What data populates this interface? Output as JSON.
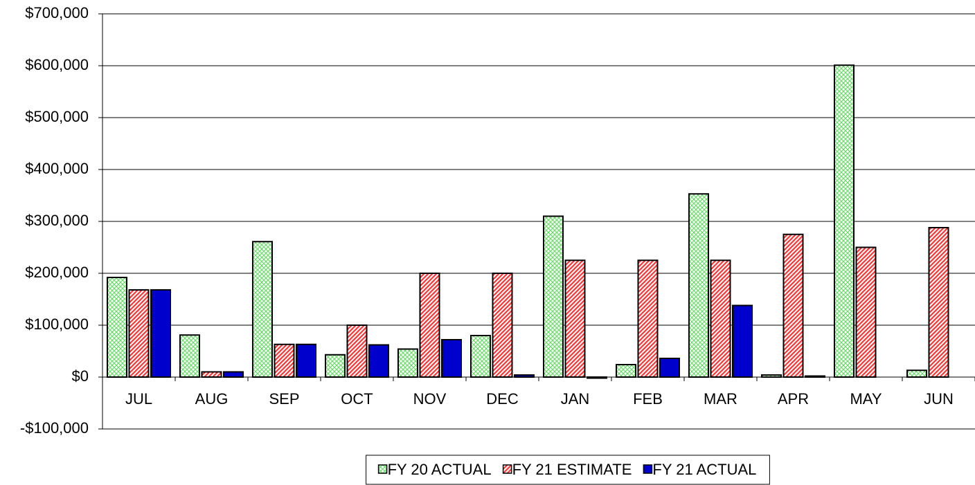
{
  "chart_data": {
    "type": "bar",
    "categories": [
      "JUL",
      "AUG",
      "SEP",
      "OCT",
      "NOV",
      "DEC",
      "JAN",
      "FEB",
      "MAR",
      "APR",
      "MAY",
      "JUN"
    ],
    "series": [
      {
        "name": "FY 20 ACTUAL",
        "color": "#33cc33",
        "pattern": "crosshatch",
        "values": [
          192000,
          81000,
          261000,
          43000,
          54000,
          80000,
          310000,
          24000,
          353000,
          4000,
          601000,
          13000
        ]
      },
      {
        "name": "FY 21 ESTIMATE",
        "color": "#ff3333",
        "pattern": "diagonal",
        "values": [
          168000,
          10000,
          63000,
          100000,
          200000,
          200000,
          225000,
          225000,
          225000,
          275000,
          250000,
          288000
        ]
      },
      {
        "name": "FY 21 ACTUAL",
        "color": "#0000cc",
        "pattern": "solid",
        "values": [
          168000,
          10000,
          63000,
          62000,
          72000,
          4000,
          -2000,
          36000,
          138000,
          2000,
          null,
          null
        ]
      }
    ],
    "ylim": [
      -100000,
      700000
    ],
    "yticks": [
      {
        "value": -100000,
        "label": "-$100,000"
      },
      {
        "value": 0,
        "label": "$0"
      },
      {
        "value": 100000,
        "label": "$100,000"
      },
      {
        "value": 200000,
        "label": "$200,000"
      },
      {
        "value": 300000,
        "label": "$300,000"
      },
      {
        "value": 400000,
        "label": "$400,000"
      },
      {
        "value": 500000,
        "label": "$500,000"
      },
      {
        "value": 600000,
        "label": "$600,000"
      },
      {
        "value": 700000,
        "label": "$700,000"
      }
    ],
    "grid": true,
    "legend": "bottom"
  }
}
